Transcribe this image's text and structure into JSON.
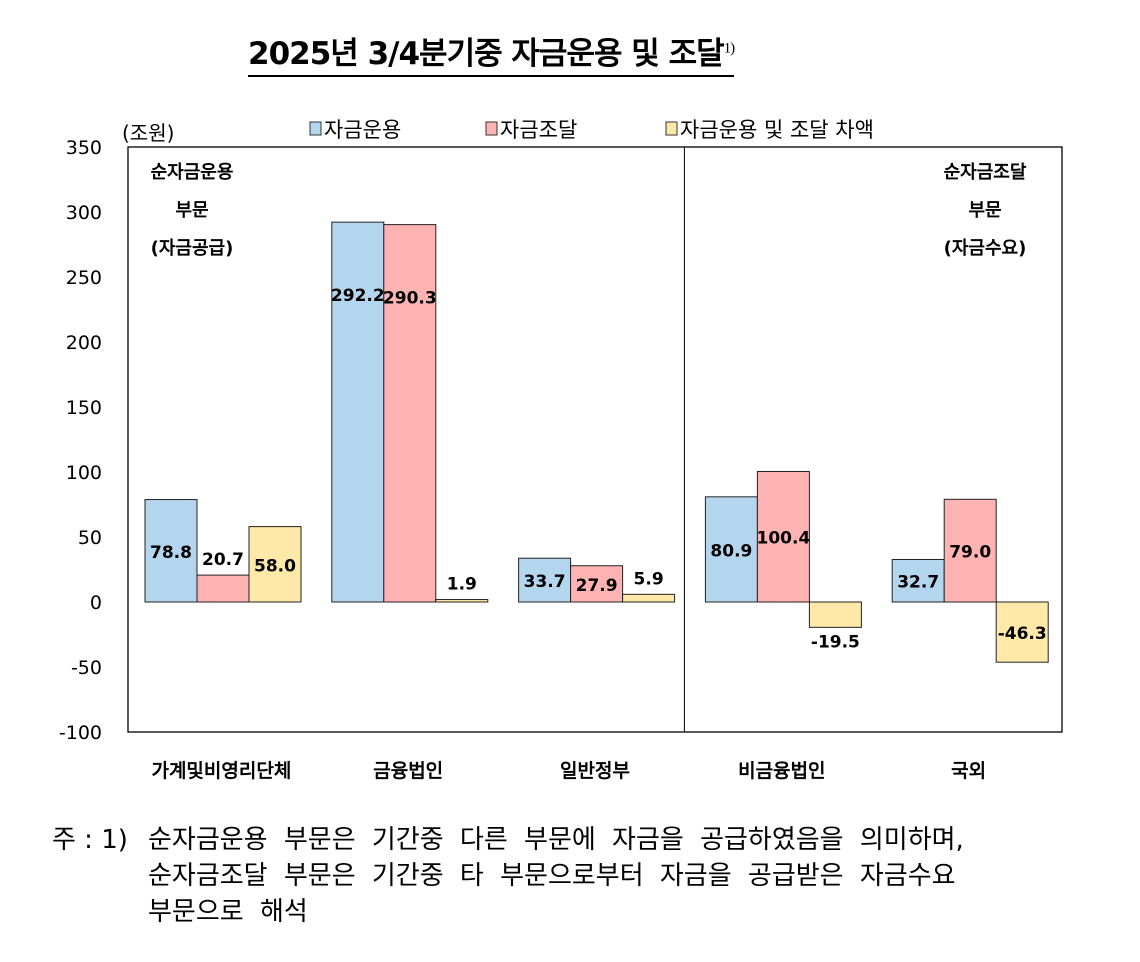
{
  "title": "2025년 3/4분기중 자금운용 및 조달",
  "title_footnote_mark": "1)",
  "chart_data": {
    "type": "bar",
    "title": "2025년 3/4분기중 자금운용 및 조달",
    "ylabel": "(조원)",
    "ylim": [
      -100,
      350
    ],
    "yticks": [
      -100,
      -50,
      0,
      50,
      100,
      150,
      200,
      250,
      300,
      350
    ],
    "grid": false,
    "legend_position": "top",
    "categories": [
      "가계및비영리단체",
      "금융법인",
      "일반정부",
      "비금융법인",
      "국외"
    ],
    "series": [
      {
        "name": "자금운용",
        "color": "#B4D5EE",
        "values": [
          78.8,
          292.2,
          33.7,
          80.9,
          32.7
        ]
      },
      {
        "name": "자금조달",
        "color": "#FFB3B3",
        "values": [
          20.7,
          290.3,
          27.9,
          100.4,
          79.0
        ]
      },
      {
        "name": "자금운용 및 조달 차액",
        "color": "#FFE9A8",
        "values": [
          58.0,
          1.9,
          5.9,
          -19.5,
          -46.3
        ]
      }
    ],
    "annotations": [
      {
        "lines": [
          "순자금운용",
          "부문",
          "(자금공급)"
        ],
        "position": "top-left"
      },
      {
        "lines": [
          "순자금조달",
          "부문",
          "(자금수요)"
        ],
        "position": "top-right"
      }
    ]
  },
  "footnote": {
    "label": "주 : 1)",
    "lines": [
      "순자금운용 부문은 기간중 다른 부문에 자금을 공급하였음을 의미하며,",
      "순자금조달 부문은 기간중 타 부문으로부터 자금을 공급받은 자금수요",
      "부문으로 해석"
    ]
  }
}
